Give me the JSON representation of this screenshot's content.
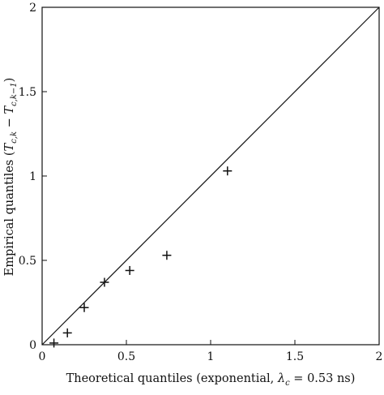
{
  "chart_data": {
    "type": "scatter",
    "title": "",
    "xlabel": {
      "before": "Theoretical quantiles (exponential, ",
      "lambda": "λ",
      "sub": "c",
      "after": " = 0.53 ns)"
    },
    "ylabel": {
      "before": "Empirical quantiles (",
      "t1": "T",
      "sub1": "c,k",
      "minus": " − ",
      "t2": "T",
      "sub2": "c,k−1",
      "after": ")"
    },
    "xlim": [
      0,
      2
    ],
    "ylim": [
      0,
      2
    ],
    "xticks": [
      0,
      0.5,
      1,
      1.5,
      2
    ],
    "yticks": [
      0,
      0.5,
      1,
      1.5,
      2
    ],
    "xticklabels": [
      "0",
      "0.5",
      "1",
      "1.5",
      "2"
    ],
    "yticklabels": [
      "0",
      "0.5",
      "1",
      "1.5",
      "2"
    ],
    "marker": "+",
    "reference_line": {
      "from": [
        0,
        0
      ],
      "to": [
        2,
        2
      ]
    },
    "points": [
      {
        "x": 0.07,
        "y": 0.01
      },
      {
        "x": 0.15,
        "y": 0.07
      },
      {
        "x": 0.25,
        "y": 0.22
      },
      {
        "x": 0.37,
        "y": 0.37
      },
      {
        "x": 0.52,
        "y": 0.44
      },
      {
        "x": 0.74,
        "y": 0.53
      },
      {
        "x": 1.1,
        "y": 1.03
      }
    ],
    "grid": false,
    "legend": null
  }
}
